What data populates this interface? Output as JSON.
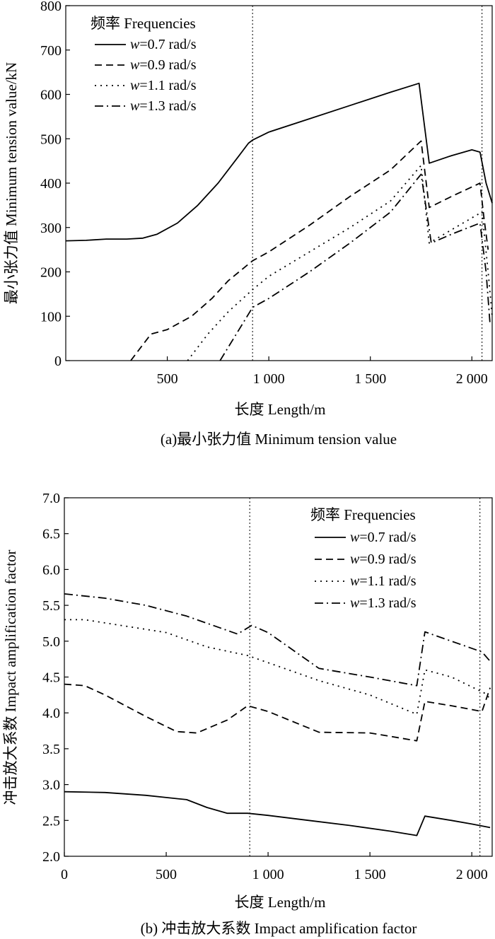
{
  "chart_data": [
    {
      "type": "line",
      "xlabel": "长度 Length/m",
      "ylabel": "最小张力值 Minimum tension value/kN",
      "caption": "(a)最小张力值 Minimum tension value",
      "xlim": [
        0,
        2100
      ],
      "ylim": [
        0,
        800
      ],
      "xticks": [
        500,
        1000,
        1500,
        2000
      ],
      "xtick_labels": [
        "500",
        "1 000",
        "1 500",
        "2 000"
      ],
      "yticks": [
        0,
        100,
        200,
        300,
        400,
        500,
        600,
        700,
        800
      ],
      "ytick_labels": [
        "0",
        "100",
        "200",
        "300",
        "400",
        "500",
        "600",
        "700",
        "800"
      ],
      "vlines": [
        920,
        2050
      ],
      "legend_title": "频率 Frequencies",
      "legend_position": "top-left",
      "series": [
        {
          "name": "w=0.7 rad/s",
          "symbol": "w",
          "rest": "=0.7 rad/s",
          "dash": "solid",
          "points": [
            [
              0,
              270
            ],
            [
              100,
              271
            ],
            [
              200,
              274
            ],
            [
              300,
              274
            ],
            [
              380,
              276
            ],
            [
              450,
              285
            ],
            [
              550,
              310
            ],
            [
              650,
              350
            ],
            [
              750,
              400
            ],
            [
              850,
              460
            ],
            [
              900,
              490
            ],
            [
              920,
              497
            ],
            [
              1000,
              515
            ],
            [
              1200,
              545
            ],
            [
              1400,
              575
            ],
            [
              1600,
              605
            ],
            [
              1740,
              625
            ],
            [
              1790,
              445
            ],
            [
              1900,
              462
            ],
            [
              2000,
              475
            ],
            [
              2040,
              470
            ],
            [
              2070,
              400
            ],
            [
              2100,
              355
            ]
          ]
        },
        {
          "name": "w=0.9 rad/s",
          "symbol": "w",
          "rest": "=0.9 rad/s",
          "dash": "dashed",
          "points": [
            [
              320,
              0
            ],
            [
              370,
              30
            ],
            [
              420,
              60
            ],
            [
              500,
              70
            ],
            [
              620,
              100
            ],
            [
              720,
              140
            ],
            [
              800,
              180
            ],
            [
              920,
              225
            ],
            [
              1000,
              245
            ],
            [
              1200,
              305
            ],
            [
              1400,
              370
            ],
            [
              1600,
              430
            ],
            [
              1750,
              495
            ],
            [
              1790,
              345
            ],
            [
              1900,
              370
            ],
            [
              2040,
              400
            ],
            [
              2060,
              320
            ],
            [
              2080,
              250
            ]
          ]
        },
        {
          "name": "w=1.1 rad/s",
          "symbol": "w",
          "rest": "=1.1 rad/s",
          "dash": "dotted",
          "points": [
            [
              600,
              0
            ],
            [
              700,
              60
            ],
            [
              800,
              110
            ],
            [
              920,
              160
            ],
            [
              1000,
              190
            ],
            [
              1200,
              245
            ],
            [
              1400,
              300
            ],
            [
              1600,
              360
            ],
            [
              1750,
              440
            ],
            [
              1790,
              265
            ],
            [
              1900,
              295
            ],
            [
              2050,
              335
            ],
            [
              2080,
              200
            ],
            [
              2100,
              100
            ]
          ]
        },
        {
          "name": "w=1.3 rad/s",
          "symbol": "w",
          "rest": "=1.3 rad/s",
          "dash": "dashdot",
          "points": [
            [
              760,
              0
            ],
            [
              840,
              60
            ],
            [
              920,
              120
            ],
            [
              1000,
              140
            ],
            [
              1200,
              200
            ],
            [
              1400,
              265
            ],
            [
              1600,
              335
            ],
            [
              1750,
              420
            ],
            [
              1800,
              265
            ],
            [
              1900,
              285
            ],
            [
              2040,
              310
            ],
            [
              2070,
              200
            ],
            [
              2090,
              80
            ]
          ]
        }
      ]
    },
    {
      "type": "line",
      "xlabel": "长度 Length/m",
      "ylabel": "冲击放大系数 Impact amplification factor",
      "caption": "(b) 冲击放大系数 Impact amplification factor",
      "xlim": [
        0,
        2100
      ],
      "ylim": [
        2.0,
        7.0
      ],
      "xticks": [
        0,
        500,
        1000,
        1500,
        2000
      ],
      "xtick_labels": [
        "0",
        "500",
        "1 000",
        "1 500",
        "2 000"
      ],
      "yticks": [
        2.0,
        2.5,
        3.0,
        3.5,
        4.0,
        4.5,
        5.0,
        5.5,
        6.0,
        6.5,
        7.0
      ],
      "ytick_labels": [
        "2.0",
        "2.5",
        "3.0",
        "3.5",
        "4.0",
        "4.5",
        "5.0",
        "5.5",
        "6.0",
        "6.5",
        "7.0"
      ],
      "vlines": [
        910,
        2040
      ],
      "legend_title": "频率 Frequencies",
      "legend_position": "top-right",
      "series": [
        {
          "name": "w=0.7 rad/s",
          "symbol": "w",
          "rest": "=0.7 rad/s",
          "dash": "solid",
          "points": [
            [
              0,
              2.9
            ],
            [
              200,
              2.89
            ],
            [
              400,
              2.85
            ],
            [
              500,
              2.82
            ],
            [
              600,
              2.79
            ],
            [
              700,
              2.68
            ],
            [
              800,
              2.6
            ],
            [
              900,
              2.6
            ],
            [
              1000,
              2.57
            ],
            [
              1200,
              2.5
            ],
            [
              1400,
              2.43
            ],
            [
              1600,
              2.35
            ],
            [
              1730,
              2.29
            ],
            [
              1770,
              2.56
            ],
            [
              1900,
              2.5
            ],
            [
              2000,
              2.45
            ],
            [
              2090,
              2.4
            ]
          ]
        },
        {
          "name": "w=0.9 rad/s",
          "symbol": "w",
          "rest": "=0.9 rad/s",
          "dash": "dashed",
          "points": [
            [
              0,
              4.4
            ],
            [
              100,
              4.38
            ],
            [
              200,
              4.25
            ],
            [
              400,
              3.95
            ],
            [
              550,
              3.74
            ],
            [
              650,
              3.72
            ],
            [
              800,
              3.9
            ],
            [
              900,
              4.1
            ],
            [
              1000,
              4.02
            ],
            [
              1250,
              3.73
            ],
            [
              1500,
              3.72
            ],
            [
              1730,
              3.61
            ],
            [
              1770,
              4.16
            ],
            [
              1900,
              4.1
            ],
            [
              2050,
              4.02
            ],
            [
              2090,
              4.35
            ]
          ]
        },
        {
          "name": "w=1.1 rad/s",
          "symbol": "w",
          "rest": "=1.1 rad/s",
          "dash": "dotted",
          "points": [
            [
              0,
              5.3
            ],
            [
              100,
              5.3
            ],
            [
              300,
              5.21
            ],
            [
              500,
              5.12
            ],
            [
              700,
              4.92
            ],
            [
              900,
              4.8
            ],
            [
              1000,
              4.7
            ],
            [
              1250,
              4.45
            ],
            [
              1500,
              4.25
            ],
            [
              1730,
              3.98
            ],
            [
              1770,
              4.6
            ],
            [
              1900,
              4.5
            ],
            [
              2060,
              4.28
            ],
            [
              2090,
              4.2
            ]
          ]
        },
        {
          "name": "w=1.3 rad/s",
          "symbol": "w",
          "rest": "=1.3 rad/s",
          "dash": "dashdot",
          "points": [
            [
              0,
              5.66
            ],
            [
              200,
              5.6
            ],
            [
              400,
              5.5
            ],
            [
              600,
              5.35
            ],
            [
              850,
              5.1
            ],
            [
              920,
              5.22
            ],
            [
              1000,
              5.12
            ],
            [
              1250,
              4.62
            ],
            [
              1500,
              4.5
            ],
            [
              1730,
              4.38
            ],
            [
              1770,
              5.13
            ],
            [
              1900,
              5.0
            ],
            [
              2050,
              4.85
            ],
            [
              2090,
              4.72
            ]
          ]
        }
      ]
    }
  ]
}
